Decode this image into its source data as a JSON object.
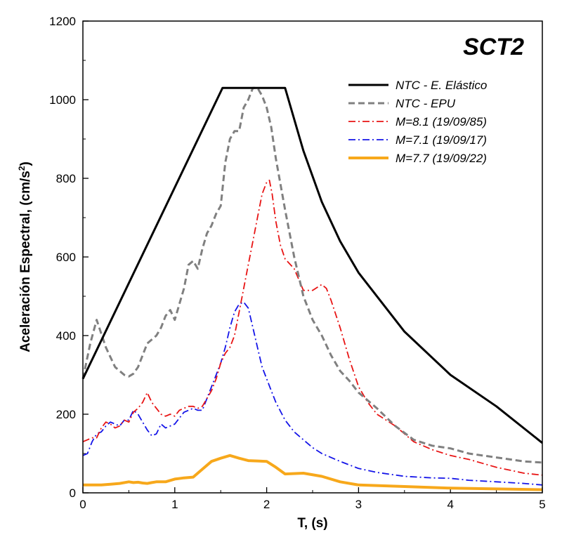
{
  "chart_data": {
    "type": "line",
    "title": "SCT2",
    "xlabel": "T, (s)",
    "ylabel": "Aceleración Espectral, (cm/s2)",
    "ylabel_main": "Aceleración Espectral, (cm/s",
    "ylabel_sup": "2",
    "ylabel_close": ")",
    "xlim": [
      0,
      5
    ],
    "ylim": [
      0,
      1200
    ],
    "xticks": [
      0,
      1,
      2,
      3,
      4,
      5
    ],
    "yticks": [
      0,
      200,
      400,
      600,
      800,
      1000,
      1200
    ],
    "legend_position": "top-right",
    "series": [
      {
        "name": "NTC - E. Elástico",
        "color": "#000000",
        "style": "solid",
        "x": [
          0,
          1.52,
          2.2,
          2.4,
          2.6,
          2.8,
          3.0,
          3.5,
          4.0,
          4.5,
          5.0
        ],
        "y": [
          290,
          1030,
          1030,
          870,
          740,
          640,
          560,
          410,
          300,
          220,
          127
        ]
      },
      {
        "name": "NTC - EPU",
        "color": "#808080",
        "style": "dashed",
        "x": [
          0,
          0.08,
          0.15,
          0.25,
          0.35,
          0.45,
          0.5,
          0.55,
          0.6,
          0.7,
          0.8,
          0.85,
          0.9,
          0.95,
          1.0,
          1.05,
          1.1,
          1.15,
          1.2,
          1.25,
          1.3,
          1.35,
          1.4,
          1.45,
          1.5,
          1.55,
          1.6,
          1.65,
          1.7,
          1.75,
          1.8,
          1.85,
          1.9,
          1.95,
          2.0,
          2.05,
          2.1,
          2.2,
          2.3,
          2.4,
          2.5,
          2.6,
          2.7,
          2.8,
          2.9,
          3.0,
          3.2,
          3.4,
          3.6,
          3.8,
          4.0,
          4.2,
          4.5,
          4.8,
          5.0
        ],
        "y": [
          290,
          380,
          440,
          370,
          320,
          300,
          296,
          303,
          320,
          380,
          400,
          420,
          450,
          465,
          440,
          480,
          520,
          580,
          590,
          570,
          620,
          660,
          680,
          710,
          730,
          840,
          900,
          920,
          920,
          980,
          1000,
          1030,
          1030,
          1010,
          980,
          930,
          850,
          720,
          600,
          500,
          440,
          400,
          350,
          310,
          285,
          255,
          215,
          170,
          135,
          120,
          113,
          100,
          90,
          80,
          77
        ]
      },
      {
        "name": "M=8.1 (19/09/85)",
        "color": "#e81414",
        "style": "dashdot",
        "x": [
          0,
          0.05,
          0.1,
          0.15,
          0.2,
          0.25,
          0.3,
          0.35,
          0.4,
          0.45,
          0.5,
          0.55,
          0.6,
          0.65,
          0.7,
          0.75,
          0.8,
          0.85,
          0.9,
          0.95,
          1.0,
          1.05,
          1.1,
          1.15,
          1.2,
          1.25,
          1.3,
          1.35,
          1.4,
          1.45,
          1.5,
          1.55,
          1.6,
          1.65,
          1.7,
          1.75,
          1.8,
          1.85,
          1.9,
          1.95,
          2.0,
          2.03,
          2.06,
          2.1,
          2.15,
          2.2,
          2.3,
          2.4,
          2.5,
          2.6,
          2.65,
          2.7,
          2.8,
          2.9,
          3.0,
          3.1,
          3.2,
          3.4,
          3.6,
          3.8,
          4.0,
          4.2,
          4.5,
          4.8,
          5.0
        ],
        "y": [
          130,
          135,
          140,
          140,
          165,
          180,
          175,
          165,
          170,
          185,
          180,
          205,
          215,
          230,
          255,
          230,
          215,
          200,
          195,
          200,
          195,
          210,
          215,
          220,
          220,
          215,
          220,
          240,
          260,
          290,
          330,
          355,
          370,
          400,
          460,
          520,
          580,
          640,
          700,
          760,
          790,
          795,
          760,
          690,
          630,
          595,
          570,
          515,
          515,
          530,
          520,
          490,
          420,
          340,
          270,
          230,
          200,
          170,
          130,
          110,
          95,
          85,
          65,
          50,
          45
        ]
      },
      {
        "name": "M=7.1 (19/09/17)",
        "color": "#1414e8",
        "style": "dashdot",
        "x": [
          0,
          0.05,
          0.1,
          0.15,
          0.2,
          0.25,
          0.3,
          0.35,
          0.4,
          0.45,
          0.5,
          0.55,
          0.6,
          0.65,
          0.7,
          0.75,
          0.8,
          0.85,
          0.9,
          0.95,
          1.0,
          1.05,
          1.1,
          1.15,
          1.2,
          1.25,
          1.3,
          1.35,
          1.4,
          1.45,
          1.5,
          1.55,
          1.6,
          1.65,
          1.7,
          1.75,
          1.8,
          1.85,
          1.9,
          1.95,
          2.0,
          2.05,
          2.1,
          2.2,
          2.3,
          2.4,
          2.5,
          2.6,
          2.8,
          3.0,
          3.2,
          3.5,
          3.8,
          4.0,
          4.2,
          4.5,
          4.8,
          5.0
        ],
        "y": [
          95,
          100,
          130,
          150,
          155,
          170,
          180,
          175,
          170,
          185,
          185,
          210,
          200,
          180,
          160,
          145,
          150,
          175,
          165,
          170,
          175,
          190,
          205,
          210,
          215,
          210,
          210,
          240,
          270,
          300,
          330,
          370,
          420,
          460,
          480,
          485,
          470,
          420,
          370,
          320,
          290,
          260,
          230,
          185,
          155,
          135,
          115,
          100,
          80,
          62,
          52,
          42,
          38,
          37,
          32,
          28,
          24,
          20
        ]
      },
      {
        "name": "M=7.7 (19/09/22)",
        "color": "#f7a81b",
        "style": "solid-thick",
        "x": [
          0,
          0.1,
          0.2,
          0.3,
          0.4,
          0.5,
          0.55,
          0.6,
          0.65,
          0.7,
          0.75,
          0.8,
          0.9,
          1.0,
          1.1,
          1.2,
          1.3,
          1.4,
          1.5,
          1.6,
          1.7,
          1.8,
          1.9,
          2.0,
          2.1,
          2.2,
          2.4,
          2.6,
          2.8,
          3.0,
          3.5,
          4.0,
          4.5,
          5.0
        ],
        "y": [
          20,
          20,
          20,
          22,
          24,
          28,
          26,
          27,
          25,
          24,
          26,
          28,
          28,
          35,
          38,
          40,
          60,
          80,
          88,
          95,
          88,
          82,
          81,
          80,
          65,
          48,
          50,
          42,
          28,
          20,
          16,
          12,
          10,
          8
        ]
      }
    ]
  }
}
